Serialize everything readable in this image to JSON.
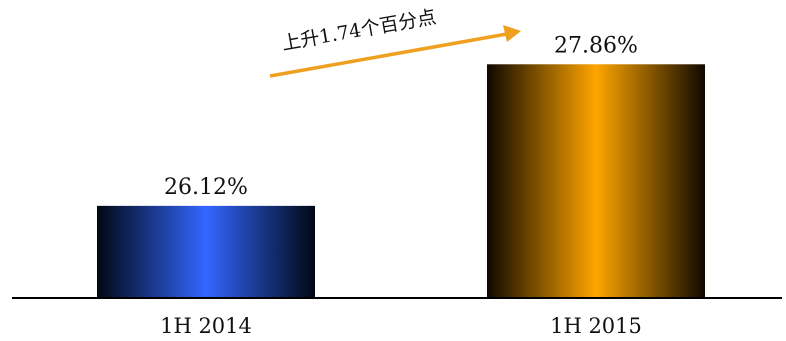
{
  "chart_data": {
    "type": "bar",
    "categories": [
      "1H 2014",
      "1H 2015"
    ],
    "values": [
      26.12,
      27.86
    ],
    "data_labels": [
      "26.12%",
      "27.86%"
    ],
    "ylim": [
      25,
      28.65
    ],
    "annotation": "上升1.74个百分点",
    "colors": {
      "bar_2014_center": "#3366ff",
      "bar_2014_edge": "#000814",
      "bar_2015_center": "#ffa500",
      "bar_2015_edge": "#0f0800",
      "arrow": "#f0a020",
      "axis": "#000000"
    }
  }
}
